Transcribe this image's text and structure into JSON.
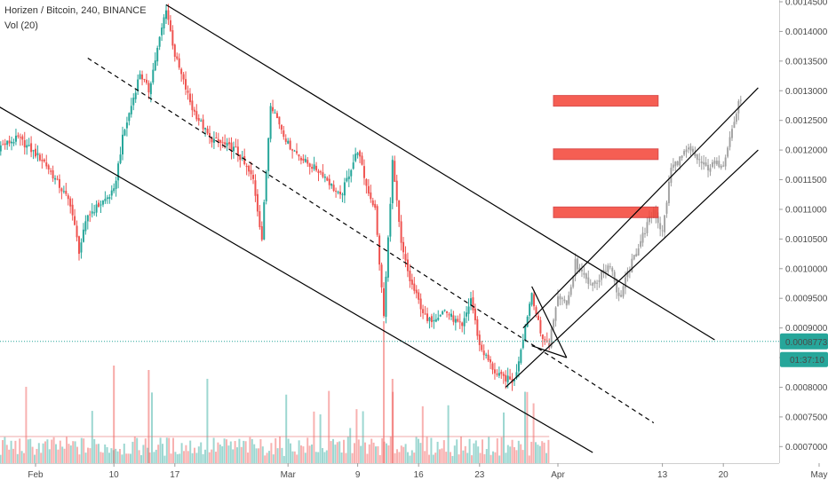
{
  "header": {
    "title": "Horizen / Bitcoin, 240, BINANCE",
    "indicator": "Vol (20)"
  },
  "colors": {
    "up": "#26a69a",
    "down": "#ef5350",
    "projection": "#9e9e9e",
    "resistance_zone": "#f44336",
    "price_line": "#26a69a"
  },
  "chart_data": {
    "type": "candlestick",
    "symbol": "Horizen / Bitcoin",
    "timeframe": "240",
    "exchange": "BINANCE",
    "x_tick_labels": [
      "Feb",
      "10",
      "17",
      "Mar",
      "9",
      "16",
      "23",
      "Apr",
      "13",
      "20",
      "May"
    ],
    "y_tick_labels": [
      "0.0014500",
      "0.0014000",
      "0.0013500",
      "0.0013000",
      "0.0012500",
      "0.0012000",
      "0.0011500",
      "0.0011000",
      "0.0010500",
      "0.0010000",
      "0.0009500",
      "0.0009000",
      "0.0008500",
      "0.0008000",
      "0.0007500",
      "0.0007000"
    ],
    "ylim": [
      0.00069,
      0.00145
    ],
    "current_price": "0.0008773",
    "countdown": "01:37:10",
    "price_path": [
      {
        "date": "Jan 27",
        "price": 0.0012
      },
      {
        "date": "Jan 30",
        "price": 0.00122
      },
      {
        "date": "Feb 2",
        "price": 0.00118
      },
      {
        "date": "Feb 5",
        "price": 0.00111
      },
      {
        "date": "Feb 6",
        "price": 0.00103
      },
      {
        "date": "Feb 7",
        "price": 0.00109
      },
      {
        "date": "Feb 10",
        "price": 0.00113
      },
      {
        "date": "Feb 11",
        "price": 0.00122
      },
      {
        "date": "Feb 13",
        "price": 0.00133
      },
      {
        "date": "Feb 14",
        "price": 0.0013
      },
      {
        "date": "Feb 16",
        "price": 0.00144
      },
      {
        "date": "Feb 17",
        "price": 0.00136
      },
      {
        "date": "Feb 19",
        "price": 0.00127
      },
      {
        "date": "Feb 21",
        "price": 0.00122
      },
      {
        "date": "Feb 24",
        "price": 0.0012
      },
      {
        "date": "Feb 26",
        "price": 0.00115
      },
      {
        "date": "Feb 27",
        "price": 0.00105
      },
      {
        "date": "Feb 28",
        "price": 0.00128
      },
      {
        "date": "Mar 1",
        "price": 0.00121
      },
      {
        "date": "Mar 3",
        "price": 0.00118
      },
      {
        "date": "Mar 5",
        "price": 0.00116
      },
      {
        "date": "Mar 7",
        "price": 0.00112
      },
      {
        "date": "Mar 9",
        "price": 0.0012
      },
      {
        "date": "Mar 10",
        "price": 0.00114
      },
      {
        "date": "Mar 11",
        "price": 0.0011
      },
      {
        "date": "Mar 12",
        "price": 0.00092
      },
      {
        "date": "Mar 13",
        "price": 0.00118
      },
      {
        "date": "Mar 14",
        "price": 0.00104
      },
      {
        "date": "Mar 15",
        "price": 0.00098
      },
      {
        "date": "Mar 17",
        "price": 0.00091
      },
      {
        "date": "Mar 19",
        "price": 0.00093
      },
      {
        "date": "Mar 21",
        "price": 0.0009
      },
      {
        "date": "Mar 22",
        "price": 0.00095
      },
      {
        "date": "Mar 23",
        "price": 0.00087
      },
      {
        "date": "Mar 25",
        "price": 0.00082
      },
      {
        "date": "Mar 27",
        "price": 0.00081
      },
      {
        "date": "Mar 29",
        "price": 0.00096
      },
      {
        "date": "Mar 30",
        "price": 0.00089
      },
      {
        "date": "Mar 31",
        "price": 0.00087
      }
    ],
    "projection_path": [
      {
        "date": "Mar 31",
        "price": 0.00087
      },
      {
        "date": "Apr 1",
        "price": 0.00096
      },
      {
        "date": "Apr 2",
        "price": 0.00094
      },
      {
        "date": "Apr 3",
        "price": 0.00101
      },
      {
        "date": "Apr 5",
        "price": 0.00097
      },
      {
        "date": "Apr 7",
        "price": 0.00101
      },
      {
        "date": "Apr 8",
        "price": 0.00095
      },
      {
        "date": "Apr 10",
        "price": 0.00103
      },
      {
        "date": "Apr 12",
        "price": 0.0011
      },
      {
        "date": "Apr 13",
        "price": 0.00106
      },
      {
        "date": "Apr 14",
        "price": 0.00117
      },
      {
        "date": "Apr 16",
        "price": 0.0012
      },
      {
        "date": "Apr 18",
        "price": 0.00117
      },
      {
        "date": "Apr 20",
        "price": 0.00118
      },
      {
        "date": "Apr 22",
        "price": 0.00129
      }
    ],
    "resistance_zones": [
      {
        "from": "Apr 1",
        "to": "Apr 12",
        "price": 0.001283
      },
      {
        "from": "Apr 1",
        "to": "Apr 12",
        "price": 0.001193
      },
      {
        "from": "Apr 1",
        "to": "Apr 12",
        "price": 0.001095
      }
    ],
    "trendlines": [
      {
        "name": "descending-channel-top",
        "style": "solid",
        "from": {
          "date": "Feb 16",
          "price": 0.001445
        },
        "to": {
          "date": "Apr 19",
          "price": 0.00088
        }
      },
      {
        "name": "descending-channel-bottom",
        "style": "solid",
        "from": {
          "date": "Jan 27",
          "price": 0.00128
        },
        "to": {
          "date": "Apr 5",
          "price": 0.00069
        }
      },
      {
        "name": "descending-channel-mid",
        "style": "dashed",
        "from": {
          "date": "Feb 7",
          "price": 0.001355
        },
        "to": {
          "date": "Apr 12",
          "price": 0.00074
        }
      },
      {
        "name": "ascending-channel-top",
        "style": "solid",
        "from": {
          "date": "Mar 28",
          "price": 0.0009
        },
        "to": {
          "date": "Apr 24",
          "price": 0.001305
        }
      },
      {
        "name": "ascending-channel-bottom",
        "style": "solid",
        "from": {
          "date": "Mar 26",
          "price": 0.0008
        },
        "to": {
          "date": "Apr 24",
          "price": 0.0012
        }
      },
      {
        "name": "wedge-upper",
        "style": "solid",
        "from": {
          "date": "Mar 29",
          "price": 0.00097
        },
        "to": {
          "date": "Apr 2",
          "price": 0.00085
        }
      },
      {
        "name": "wedge-lower",
        "style": "solid",
        "from": {
          "date": "Mar 29",
          "price": 0.00087
        },
        "to": {
          "date": "Apr 2",
          "price": 0.00085
        }
      }
    ]
  }
}
